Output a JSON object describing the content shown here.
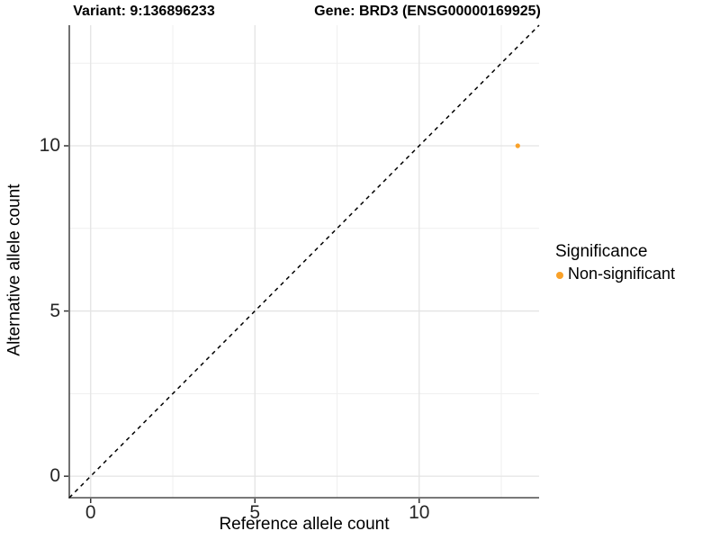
{
  "chart_data": {
    "type": "scatter",
    "title_left": "Variant: 9:136896233",
    "title_right": "Gene: BRD3 (ENSG00000169925)",
    "xlabel": "Reference allele count",
    "ylabel": "Alternative allele count",
    "xlim": [
      -0.65,
      13.65
    ],
    "ylim": [
      -0.65,
      13.65
    ],
    "x_major_ticks": [
      0,
      5,
      10
    ],
    "y_major_ticks": [
      0,
      5,
      10
    ],
    "x_minor_ticks": [
      2.5,
      7.5,
      12.5
    ],
    "y_minor_ticks": [
      2.5,
      7.5,
      12.5
    ],
    "grid": "major and minor, light gray, on white panel",
    "colors": {
      "point_orange": "#F9A129",
      "grid_major": "#E4E4E4",
      "grid_minor": "#EFEFEF",
      "axis_line": "#4d4d4d",
      "identity_line": "#000000"
    },
    "points": [
      {
        "x": 13,
        "y": 10,
        "series": "Non-significant",
        "color": "#F9A129",
        "radius": 2.6
      }
    ],
    "identity_line": {
      "style": "dashed",
      "from": [
        -0.65,
        -0.65
      ],
      "to": [
        13.65,
        13.65
      ],
      "color": "#000000"
    },
    "legend": {
      "title": "Significance",
      "position": "right",
      "entries": [
        {
          "label": "Non-significant",
          "color": "#F9A129"
        }
      ]
    }
  }
}
